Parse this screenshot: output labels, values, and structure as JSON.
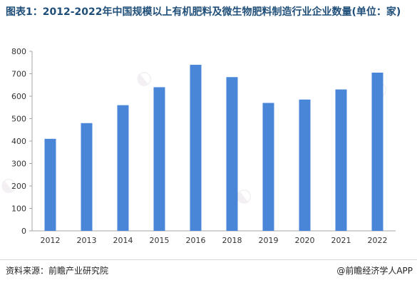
{
  "title": "图表1：2012-2022年中国规模以上有机肥料及微生物肥料制造行业企业数量(单位：家)",
  "source_left": "资料来源：前瞻产业研究院",
  "source_right": "@前瞻经济学人APP",
  "colors": {
    "bar": "#4a86d8",
    "axis": "#a6a6a6",
    "title": "#1f4e79"
  },
  "chart_data": {
    "type": "bar",
    "categories": [
      "2012",
      "2013",
      "2014",
      "2015",
      "2016",
      "2018",
      "2019",
      "2020",
      "2021",
      "2022"
    ],
    "values": [
      410,
      480,
      560,
      640,
      740,
      685,
      570,
      585,
      630,
      705
    ],
    "yticks": [
      0,
      100,
      200,
      300,
      400,
      500,
      600,
      700,
      800
    ],
    "ylim": [
      0,
      800
    ],
    "grid": false,
    "legend": "none"
  }
}
